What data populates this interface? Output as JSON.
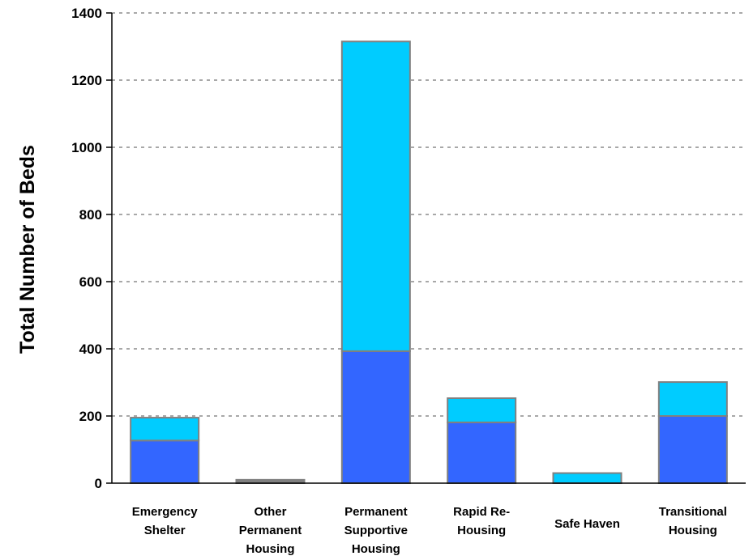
{
  "chart_data": {
    "type": "bar",
    "stacked": true,
    "title": "",
    "xlabel": "",
    "ylabel": "Total Number of Beds",
    "ylim": [
      0,
      1400
    ],
    "yticks": [
      0,
      200,
      400,
      600,
      800,
      1000,
      1200,
      1400
    ],
    "grid": true,
    "categories": [
      [
        "Emergency",
        "Shelter"
      ],
      [
        "Other",
        "Permanent",
        "Housing"
      ],
      [
        "Permanent",
        "Supportive",
        "Housing"
      ],
      [
        "Rapid Re-",
        "Housing"
      ],
      [
        "Safe Haven"
      ],
      [
        "Transitional",
        "Housing"
      ]
    ],
    "series": [
      {
        "color": "#3366ff",
        "values": [
          127,
          0,
          393,
          181,
          0,
          200
        ]
      },
      {
        "color": "#00ccff",
        "values": [
          68,
          0,
          922,
          72,
          30,
          101
        ]
      },
      {
        "color": "#808080",
        "values": [
          0,
          10,
          0,
          0,
          0,
          0
        ]
      }
    ]
  }
}
